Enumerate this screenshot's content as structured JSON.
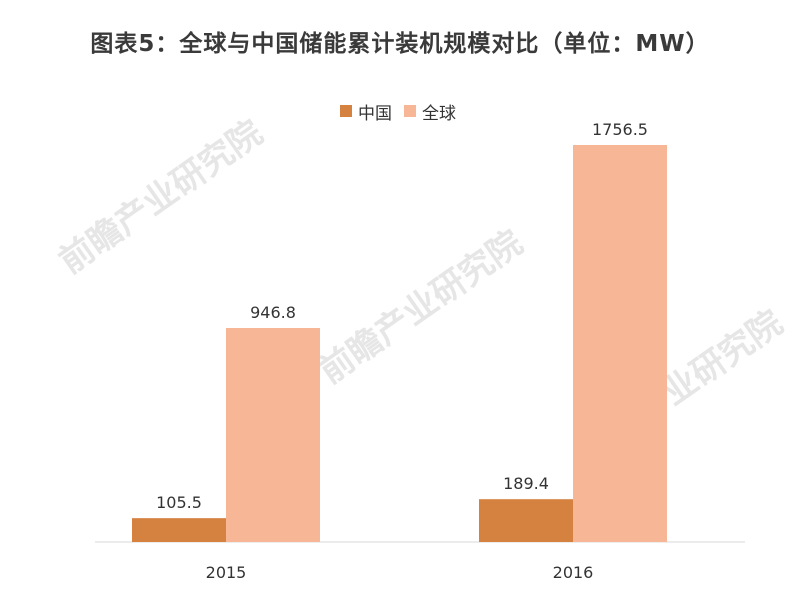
{
  "chart_data": {
    "type": "bar",
    "title": "图表5：全球与中国储能累计装机规模对比（单位：MW）",
    "categories": [
      "2015",
      "2016"
    ],
    "series": [
      {
        "name": "中国",
        "values": [
          105.5,
          189.4
        ],
        "color": "#d5813f"
      },
      {
        "name": "全球",
        "values": [
          946.8,
          1756.5
        ],
        "color": "#f7b796"
      }
    ],
    "ylim": [
      0,
      1756.5
    ],
    "grid": false,
    "legend": "top-center"
  },
  "watermark": "前瞻产业研究院"
}
